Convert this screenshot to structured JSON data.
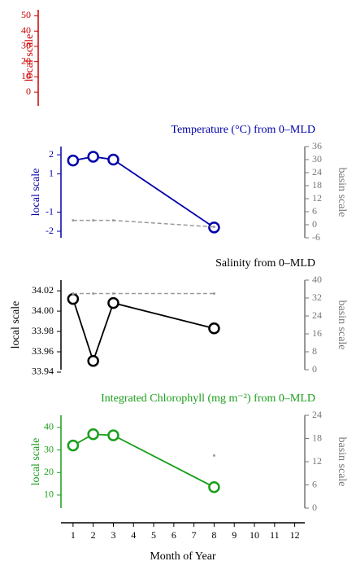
{
  "chart_data": [
    {
      "type": "axis",
      "ylabel": "local scale",
      "color": "#cc0000",
      "ylim": [
        -9,
        54
      ],
      "yticks": [
        0,
        10,
        20,
        30,
        40,
        50
      ]
    },
    {
      "type": "line",
      "title": "Temperature (°C) from 0–MLD",
      "ylabel": "local scale",
      "y2label": "basin scale",
      "color": "#0000aa",
      "ylim": [
        -2.34,
        2.43
      ],
      "yticks": [
        -2,
        -1,
        1,
        2
      ],
      "y2lim": [
        -6,
        36
      ],
      "y2ticks": [
        -6,
        0,
        6,
        12,
        18,
        24,
        30,
        36
      ],
      "x": [
        1,
        2,
        3,
        8
      ],
      "series": [
        {
          "color": "#0000aa",
          "values": [
            1.7,
            1.9,
            1.75,
            -1.8
          ]
        },
        {
          "color": "#999999",
          "axis": "y2",
          "values": [
            2,
            2,
            2,
            -1
          ]
        }
      ]
    },
    {
      "type": "line",
      "title": "Salinity from 0–MLD",
      "ylabel": "local scale",
      "y2label": "basin scale",
      "color": "#000000",
      "ylim": [
        33.9424,
        34.0305
      ],
      "yticks": [
        {
          "value": 33.94,
          "label": "33.94"
        },
        33.96,
        33.98,
        {
          "value": 34.0,
          "label": "34.00"
        },
        34.02
      ],
      "y2lim": [
        0,
        40
      ],
      "y2ticks": [
        0,
        8,
        16,
        24,
        32,
        40
      ],
      "x": [
        1,
        2,
        3,
        8
      ],
      "series": [
        {
          "color": "#000000",
          "values": [
            34.012,
            33.951,
            34.008,
            33.983
          ]
        },
        {
          "color": "#999999",
          "axis": "y2",
          "values": [
            34,
            34,
            34,
            34
          ]
        }
      ]
    },
    {
      "type": "line",
      "title": "Integrated Chlorophyll (mg m⁻²) from 0–MLD",
      "ylabel": "local scale",
      "y2label": "basin scale",
      "color": "#1a9e1a",
      "ylim": [
        4.2,
        45.4
      ],
      "yticks": [
        10,
        20,
        30,
        40
      ],
      "y2lim": [
        0,
        24
      ],
      "y2ticks": [
        0,
        6,
        12,
        18,
        24
      ],
      "x": [
        1,
        2,
        3,
        8
      ],
      "series": [
        {
          "color": "#1a9e1a",
          "values": [
            32,
            37,
            36.5,
            13.5
          ]
        },
        {
          "color": "#999999",
          "axis": "y2",
          "values": [
            null,
            null,
            null,
            13.6
          ]
        }
      ],
      "xlabel": "Month of Year",
      "xlim": [
        0.4,
        12.5
      ],
      "xticks": [
        1,
        2,
        3,
        4,
        5,
        6,
        7,
        8,
        9,
        10,
        11,
        12
      ]
    }
  ]
}
